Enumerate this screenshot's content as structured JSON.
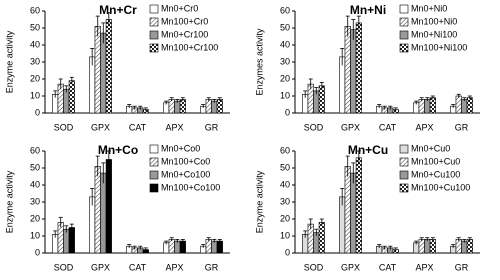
{
  "chart_data": [
    {
      "type": "bar",
      "title": "Mn+Cr",
      "y_label": "Enzyme activity",
      "categories": [
        "SOD",
        "GPX",
        "CAT",
        "APX",
        "GR"
      ],
      "ylim": [
        0,
        60
      ],
      "yticks": [
        0,
        10,
        20,
        30,
        40,
        50,
        60
      ],
      "legend": "upper right",
      "series": [
        {
          "name": "Mn0+Cr0",
          "color": "#ffffff",
          "pattern": "solid",
          "values": [
            11,
            33,
            4,
            6,
            4
          ],
          "errors": [
            2,
            5,
            1,
            1,
            1
          ]
        },
        {
          "name": "Mn100+Cr0",
          "color": "#ffffff",
          "pattern": "hatch",
          "values": [
            17,
            51,
            3,
            8,
            8
          ],
          "errors": [
            3,
            6,
            1,
            1,
            1
          ]
        },
        {
          "name": "Mn0+Cr100",
          "color": "#999999",
          "pattern": "solid",
          "values": [
            14,
            47,
            3,
            7,
            7
          ],
          "errors": [
            2,
            6,
            1,
            1,
            1
          ]
        },
        {
          "name": "Mn100+Cr100",
          "color": "#333333",
          "pattern": "checker",
          "values": [
            19,
            55,
            2,
            8,
            8
          ],
          "errors": [
            2,
            4,
            1,
            1,
            1
          ]
        }
      ]
    },
    {
      "type": "bar",
      "title": "Mn+Ni",
      "y_label": "Enzymes activity",
      "categories": [
        "SOD",
        "GPX",
        "CAT",
        "APX",
        "GR"
      ],
      "ylim": [
        0,
        60
      ],
      "yticks": [
        0,
        10,
        20,
        30,
        40,
        50,
        60
      ],
      "legend": "upper right",
      "series": [
        {
          "name": "Mn0+Ni0",
          "color": "#ffffff",
          "pattern": "solid",
          "values": [
            11,
            33,
            4,
            6,
            4
          ],
          "errors": [
            2,
            5,
            1,
            1,
            1
          ]
        },
        {
          "name": "Mn100+Ni0",
          "color": "#ffffff",
          "pattern": "hatch",
          "values": [
            17,
            51,
            3,
            8,
            10
          ],
          "errors": [
            3,
            6,
            1,
            1,
            1
          ]
        },
        {
          "name": "Mn0+Ni100",
          "color": "#999999",
          "pattern": "solid",
          "values": [
            13,
            49,
            3,
            8,
            8
          ],
          "errors": [
            2,
            6,
            1,
            1,
            1
          ]
        },
        {
          "name": "Mn100+Ni100",
          "color": "#333333",
          "pattern": "checker",
          "values": [
            16,
            53,
            2,
            9,
            9
          ],
          "errors": [
            2,
            4,
            1,
            1,
            1
          ]
        }
      ]
    },
    {
      "type": "bar",
      "title": "Mn+Co",
      "y_label": "Enzyme activity",
      "categories": [
        "SOD",
        "GPX",
        "CAT",
        "APX",
        "GR"
      ],
      "ylim": [
        0,
        60
      ],
      "yticks": [
        0,
        10,
        20,
        30,
        40,
        50,
        60
      ],
      "legend": "upper right",
      "series": [
        {
          "name": "Mn0+Co0",
          "color": "#ffffff",
          "pattern": "solid",
          "values": [
            11,
            33,
            4,
            6,
            4
          ],
          "errors": [
            2,
            5,
            1,
            1,
            1
          ]
        },
        {
          "name": "Mn100+Co0",
          "color": "#ffffff",
          "pattern": "hatch",
          "values": [
            18,
            51,
            3,
            8,
            8
          ],
          "errors": [
            3,
            6,
            1,
            1,
            1
          ]
        },
        {
          "name": "Mn0+Co100",
          "color": "#999999",
          "pattern": "solid",
          "values": [
            14,
            47,
            3,
            7,
            7
          ],
          "errors": [
            2,
            6,
            1,
            1,
            1
          ]
        },
        {
          "name": "Mn100+Co100",
          "color": "#000000",
          "pattern": "solid",
          "values": [
            15,
            55,
            2,
            7,
            7
          ],
          "errors": [
            2,
            5,
            1,
            1,
            1
          ]
        }
      ]
    },
    {
      "type": "bar",
      "title": "Mn+Cu",
      "y_label": "Enzyme activity",
      "categories": [
        "SOD",
        "GPX",
        "CAT",
        "APX",
        "GR"
      ],
      "ylim": [
        0,
        60
      ],
      "yticks": [
        0,
        10,
        20,
        30,
        40,
        50,
        60
      ],
      "legend": "upper right",
      "series": [
        {
          "name": "Mn0+Cu0",
          "color": "#dddddd",
          "pattern": "solid",
          "values": [
            11,
            33,
            4,
            6,
            4
          ],
          "errors": [
            2,
            5,
            1,
            1,
            1
          ]
        },
        {
          "name": "Mn100+Cu0",
          "color": "#ffffff",
          "pattern": "hatch",
          "values": [
            17,
            51,
            3,
            8,
            8
          ],
          "errors": [
            3,
            6,
            1,
            1,
            1
          ]
        },
        {
          "name": "Mn0+Cu100",
          "color": "#999999",
          "pattern": "solid",
          "values": [
            12,
            47,
            3,
            8,
            7
          ],
          "errors": [
            2,
            6,
            1,
            1,
            1
          ]
        },
        {
          "name": "Mn100+Cu100",
          "color": "#333333",
          "pattern": "checker",
          "values": [
            18,
            56,
            2,
            8,
            8
          ],
          "errors": [
            2,
            4,
            1,
            1,
            1
          ]
        }
      ]
    }
  ]
}
